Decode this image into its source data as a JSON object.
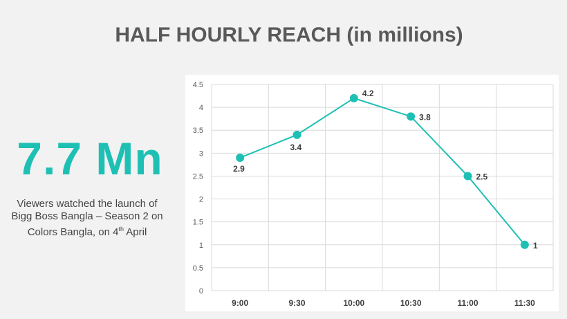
{
  "title": "HALF HOURLY REACH (in millions)",
  "stat": {
    "value": "7.7 Mn",
    "desc_line1": "Viewers watched the launch of",
    "desc_line2": "Bigg Boss Bangla – Season 2 on",
    "desc_line3_pre": "Colors Bangla, on 4",
    "desc_line3_sup": "th",
    "desc_line3_post": " April"
  },
  "colors": {
    "accent": "#1ec0b4",
    "text": "#595959"
  },
  "chart_data": {
    "type": "line",
    "categories": [
      "9:00",
      "9:30",
      "10:00",
      "10:30",
      "11:00",
      "11:30"
    ],
    "series": [
      {
        "values": [
          2.9,
          3.4,
          4.2,
          3.8,
          2.5,
          1
        ]
      }
    ],
    "data_labels": [
      "2.9",
      "3.4",
      "4.2",
      "3.8",
      "2.5",
      "1"
    ],
    "y_ticks": [
      "0",
      "0.5",
      "1",
      "1.5",
      "2",
      "2.5",
      "3",
      "3.5",
      "4",
      "4.5"
    ],
    "ylim": [
      0,
      4.5
    ],
    "grid": true,
    "legend": "none"
  }
}
